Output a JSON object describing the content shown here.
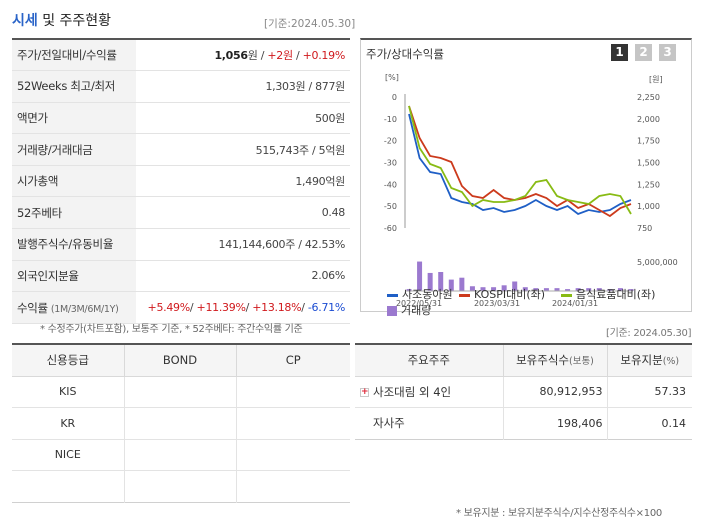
{
  "section_title": {
    "part1": "시세",
    "part2": " 및 주주현황"
  },
  "base_date": "[기준:2024.05.30]",
  "summary_rows": [
    {
      "label": "주가/전일대비/수익률",
      "value": [
        {
          "t": "1,056",
          "c": "bold"
        },
        {
          "t": "원 / ",
          "c": ""
        },
        {
          "t": "+2원",
          "c": "up"
        },
        {
          "t": " / ",
          "c": ""
        },
        {
          "t": "+0.19%",
          "c": "up"
        }
      ]
    },
    {
      "label": "52Weeks 최고/최저",
      "value": [
        {
          "t": "1,303원 / 877원",
          "c": ""
        }
      ]
    },
    {
      "label": "액면가",
      "value": [
        {
          "t": "500원",
          "c": ""
        }
      ]
    },
    {
      "label": "거래량/거래대금",
      "value": [
        {
          "t": "515,743주 / 5억원",
          "c": ""
        }
      ]
    },
    {
      "label": "시가총액",
      "value": [
        {
          "t": "1,490억원",
          "c": ""
        }
      ]
    },
    {
      "label": "52주베타",
      "value": [
        {
          "t": "0.48",
          "c": ""
        }
      ]
    },
    {
      "label": "발행주식수/유동비율",
      "value": [
        {
          "t": "141,144,600주 / 42.53%",
          "c": ""
        }
      ]
    },
    {
      "label": "외국인지분율",
      "value": [
        {
          "t": "2.06%",
          "c": ""
        }
      ]
    },
    {
      "label": "수익률",
      "label_sub": "(1M/3M/6M/1Y)",
      "value": [
        {
          "t": "+5.49%",
          "c": "up"
        },
        {
          "t": "/ ",
          "c": ""
        },
        {
          "t": "+11.39%",
          "c": "up"
        },
        {
          "t": "/ ",
          "c": ""
        },
        {
          "t": "+13.18%",
          "c": "up"
        },
        {
          "t": "/ ",
          "c": ""
        },
        {
          "t": "-6.71%",
          "c": "dn"
        }
      ]
    }
  ],
  "summary_note": "* 수정주가(차트포함), 보통주 기준, * 52주베타: 주간수익률 기준",
  "chart_panel": {
    "title": "주가/상대수익률",
    "tabs": [
      "1",
      "2",
      "3"
    ],
    "active_tab": "1"
  },
  "chart_data": {
    "type": "line",
    "left_unit": "[%]",
    "right_unit": "[원]",
    "left_ticks": [
      "0",
      "-10",
      "-20",
      "-30",
      "-40",
      "-50",
      "-60"
    ],
    "right_ticks": [
      "2,250",
      "2,000",
      "1,750",
      "1,500",
      "1,250",
      "1,000",
      "750"
    ],
    "volume_tick": "5,000,000",
    "x_ticks": [
      "2022/05/31",
      "2023/03/31",
      "2024/01/31"
    ],
    "ylim_left": [
      -60,
      0
    ],
    "series": [
      {
        "name": "사조동아원",
        "color": "#1f5fc6",
        "values": [
          -3,
          -25,
          -32,
          -33,
          -45,
          -47,
          -48,
          -51,
          -50,
          -52,
          -51,
          -49,
          -46,
          -49,
          -51,
          -49,
          -53,
          -51,
          -52,
          -51,
          -48,
          -46
        ]
      },
      {
        "name": "KOSPI대비(좌)",
        "color": "#cc3a1c",
        "values": [
          1,
          -15,
          -24,
          -25,
          -27,
          -39,
          -44,
          -45,
          -41,
          -45,
          -46,
          -45,
          -43,
          -45,
          -49,
          -46,
          -50,
          -48,
          -51,
          -54,
          -50,
          -48
        ]
      },
      {
        "name": "음식료품대비(좌)",
        "color": "#88bb14",
        "values": [
          1,
          -20,
          -28,
          -30,
          -40,
          -42,
          -49,
          -46,
          -47,
          -47,
          -46,
          -44,
          -37,
          -36,
          -44,
          -46,
          -47,
          -48,
          -44,
          -43,
          -44,
          -53
        ]
      }
    ],
    "volume": {
      "name": "거래량",
      "color": "#9b79cf",
      "values": [
        0.2,
        3.1,
        1.9,
        2.0,
        1.2,
        1.4,
        0.5,
        0.4,
        0.4,
        0.6,
        1.0,
        0.4,
        0.3,
        0.3,
        0.3,
        0.2,
        0.3,
        0.3,
        0.3,
        0.2,
        0.3,
        0.2
      ]
    }
  },
  "credit_table": {
    "headers": [
      "신용등급",
      "BOND",
      "CP"
    ],
    "rows": [
      [
        "KIS",
        "",
        ""
      ],
      [
        "KR",
        "",
        ""
      ],
      [
        "NICE",
        "",
        ""
      ],
      [
        "",
        "",
        ""
      ]
    ]
  },
  "shareholder_base_date": "[기준: 2024.05.30]",
  "shareholder_table": {
    "headers": [
      "주요주주",
      "보유주식수",
      "(보통)",
      "보유지분",
      "(%)"
    ],
    "rows": [
      {
        "name": "사조대림 외 4인",
        "shares": "80,912,953",
        "pct": "57.33",
        "expand": "+"
      },
      {
        "name": "자사주",
        "shares": "198,406",
        "pct": "0.14",
        "expand": ""
      }
    ]
  },
  "shareholder_note": "* 보유지분 : 보유지분주식수/지수산정주식수×100"
}
